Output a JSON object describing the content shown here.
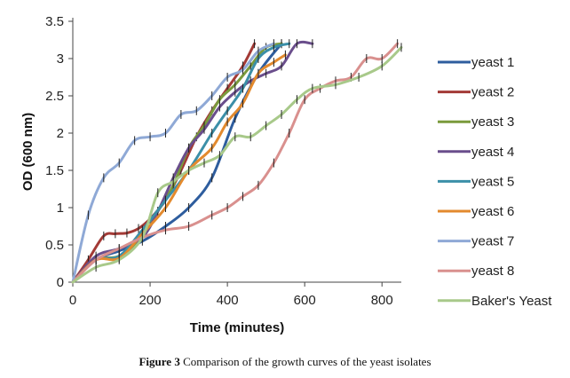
{
  "caption": {
    "label": "Figure 3",
    "text": "Comparison of the growth curves of the yeast isolates"
  },
  "chart_data": {
    "type": "line",
    "xlabel": "Time (minutes)",
    "ylabel": "OD (600 nm)",
    "xlim": [
      0,
      850
    ],
    "ylim": [
      0,
      3.5
    ],
    "xticks": [
      0,
      200,
      400,
      600,
      800
    ],
    "yticks": [
      0,
      0.5,
      1,
      1.5,
      2,
      2.5,
      3,
      3.5
    ],
    "grid": false,
    "legend_position": "right",
    "error_bars": true,
    "series": [
      {
        "name": "yeast 1",
        "color": "#2e5d9e",
        "x": [
          0,
          60,
          120,
          180,
          240,
          300,
          360,
          420,
          480,
          540
        ],
        "y": [
          0.0,
          0.3,
          0.42,
          0.55,
          0.75,
          1.0,
          1.4,
          2.2,
          2.8,
          3.2
        ]
      },
      {
        "name": "yeast 2",
        "color": "#a33a36",
        "x": [
          0,
          40,
          80,
          110,
          140,
          170,
          200,
          240,
          280,
          320,
          360,
          400,
          440,
          470
        ],
        "y": [
          0.0,
          0.3,
          0.62,
          0.65,
          0.66,
          0.72,
          0.85,
          1.1,
          1.5,
          1.95,
          2.3,
          2.6,
          2.9,
          3.2
        ]
      },
      {
        "name": "yeast 3",
        "color": "#7a9a3c",
        "x": [
          0,
          60,
          120,
          180,
          220,
          260,
          300,
          340,
          380,
          420,
          460,
          500,
          540
        ],
        "y": [
          0.0,
          0.3,
          0.35,
          0.6,
          0.95,
          1.3,
          1.8,
          2.1,
          2.45,
          2.65,
          2.9,
          3.15,
          3.2
        ]
      },
      {
        "name": "yeast 4",
        "color": "#6a4e8c",
        "x": [
          0,
          60,
          120,
          180,
          220,
          260,
          300,
          340,
          380,
          420,
          460,
          500,
          540,
          580,
          620
        ],
        "y": [
          0.0,
          0.35,
          0.45,
          0.6,
          0.95,
          1.4,
          1.8,
          2.05,
          2.35,
          2.55,
          2.7,
          2.8,
          2.9,
          3.2,
          3.2
        ]
      },
      {
        "name": "yeast 5",
        "color": "#3b8fa8",
        "x": [
          0,
          60,
          120,
          180,
          240,
          300,
          360,
          400,
          440,
          480,
          520,
          560
        ],
        "y": [
          0.0,
          0.3,
          0.35,
          0.7,
          1.1,
          1.5,
          2.0,
          2.3,
          2.6,
          3.0,
          3.15,
          3.2
        ]
      },
      {
        "name": "yeast 6",
        "color": "#e38a2e",
        "x": [
          0,
          60,
          120,
          180,
          240,
          300,
          360,
          400,
          440,
          480,
          520,
          550
        ],
        "y": [
          0.0,
          0.3,
          0.32,
          0.65,
          1.0,
          1.5,
          1.8,
          2.15,
          2.4,
          2.8,
          2.95,
          3.05
        ]
      },
      {
        "name": "yeast 7",
        "color": "#8fa9d6",
        "x": [
          0,
          40,
          80,
          120,
          160,
          200,
          240,
          280,
          320,
          360,
          400,
          440,
          480,
          520
        ],
        "y": [
          0.0,
          0.9,
          1.4,
          1.6,
          1.9,
          1.95,
          2.0,
          2.25,
          2.3,
          2.5,
          2.75,
          2.85,
          3.1,
          3.2
        ]
      },
      {
        "name": "yeast 8",
        "color": "#d9908e",
        "x": [
          0,
          60,
          120,
          180,
          240,
          300,
          360,
          400,
          440,
          480,
          520,
          560,
          600,
          640,
          680,
          720,
          760,
          800,
          840
        ],
        "y": [
          0.0,
          0.3,
          0.45,
          0.6,
          0.7,
          0.75,
          0.9,
          1.0,
          1.15,
          1.3,
          1.6,
          2.0,
          2.45,
          2.6,
          2.7,
          2.75,
          3.0,
          3.0,
          3.2
        ]
      },
      {
        "name": "Baker's Yeast",
        "color": "#a8c98a",
        "x": [
          0,
          60,
          120,
          180,
          220,
          260,
          300,
          340,
          380,
          420,
          460,
          500,
          540,
          580,
          620,
          680,
          740,
          800,
          850
        ],
        "y": [
          0.0,
          0.2,
          0.3,
          0.6,
          1.2,
          1.35,
          1.5,
          1.6,
          1.7,
          1.95,
          1.95,
          2.1,
          2.25,
          2.45,
          2.6,
          2.65,
          2.75,
          2.9,
          3.15
        ]
      }
    ]
  }
}
